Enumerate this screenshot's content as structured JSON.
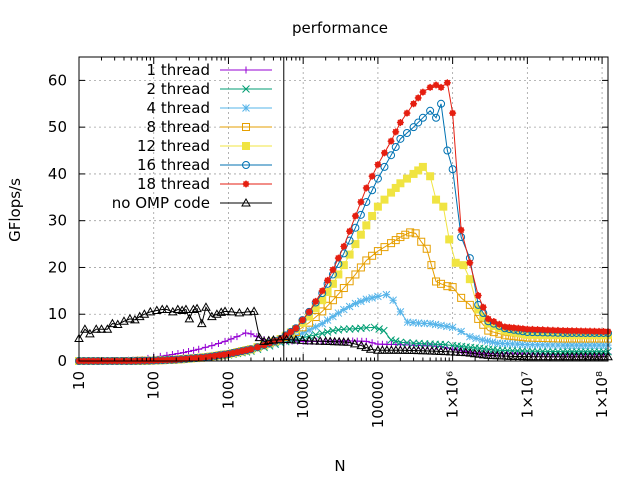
{
  "chart_data": {
    "type": "line",
    "title": "performance",
    "xlabel": "N",
    "ylabel": "GFlops/s",
    "xscale": "log",
    "xlim": [
      10,
      120000000
    ],
    "ylim": [
      0,
      65
    ],
    "grid": true,
    "legend_position": "top-left",
    "x_ticks": [
      {
        "value": 10,
        "label": "10"
      },
      {
        "value": 100,
        "label": "100"
      },
      {
        "value": 1000,
        "label": "1000"
      },
      {
        "value": 10000,
        "label": "10000"
      },
      {
        "value": 100000,
        "label": "100000"
      },
      {
        "value": 1000000,
        "label": "1×10⁶"
      },
      {
        "value": 10000000,
        "label": "1×10⁷"
      },
      {
        "value": 100000000,
        "label": "1×10⁸"
      }
    ],
    "y_ticks": [
      0,
      10,
      20,
      30,
      40,
      50,
      60
    ],
    "vertical_marker_x": 5500,
    "series": [
      {
        "name": "1 thread",
        "color": "#9400d3",
        "marker": "plus",
        "points": [
          [
            10,
            0
          ],
          [
            20,
            0
          ],
          [
            40,
            0.1
          ],
          [
            70,
            0.3
          ],
          [
            100,
            0.8
          ],
          [
            150,
            1.2
          ],
          [
            250,
            1.8
          ],
          [
            400,
            2.5
          ],
          [
            600,
            3.3
          ],
          [
            900,
            4.2
          ],
          [
            1300,
            5.2
          ],
          [
            1700,
            6
          ],
          [
            2000,
            5.8
          ],
          [
            2400,
            5.2
          ],
          [
            3000,
            4.6
          ],
          [
            4000,
            4.4
          ],
          [
            6000,
            4.3
          ],
          [
            10000,
            4.2
          ],
          [
            20000,
            4.2
          ],
          [
            40000,
            4.3
          ],
          [
            70000,
            4.2
          ],
          [
            100000,
            3.6
          ],
          [
            200000,
            3.5
          ],
          [
            400000,
            3.3
          ],
          [
            700000,
            3.1
          ],
          [
            1000000,
            2.5
          ],
          [
            2000000,
            1.7
          ],
          [
            4000000,
            1.6
          ],
          [
            10000000,
            1.5
          ],
          [
            30000000,
            1.4
          ],
          [
            120000000,
            1.5
          ]
        ]
      },
      {
        "name": "2 thread",
        "color": "#009e73",
        "marker": "cross",
        "points": [
          [
            10,
            0
          ],
          [
            50,
            0
          ],
          [
            100,
            0.1
          ],
          [
            200,
            0.3
          ],
          [
            500,
            0.7
          ],
          [
            1000,
            1.3
          ],
          [
            2000,
            2.1
          ],
          [
            3000,
            2.9
          ],
          [
            5000,
            3.9
          ],
          [
            8000,
            4.6
          ],
          [
            12000,
            5.3
          ],
          [
            18000,
            5.9
          ],
          [
            25000,
            6.5
          ],
          [
            35000,
            6.8
          ],
          [
            50000,
            6.9
          ],
          [
            70000,
            7.1
          ],
          [
            90000,
            7.2
          ],
          [
            120000,
            6.5
          ],
          [
            150000,
            4.5
          ],
          [
            200000,
            4
          ],
          [
            300000,
            3.8
          ],
          [
            500000,
            3.6
          ],
          [
            800000,
            3.5
          ],
          [
            1000000,
            3.3
          ],
          [
            2000000,
            2.8
          ],
          [
            4000000,
            2.3
          ],
          [
            10000000,
            2.1
          ],
          [
            30000000,
            2.0
          ],
          [
            120000000,
            2.0
          ]
        ]
      },
      {
        "name": "4 thread",
        "color": "#56b4e9",
        "marker": "star",
        "points": [
          [
            10,
            0
          ],
          [
            50,
            0
          ],
          [
            100,
            0.1
          ],
          [
            200,
            0.3
          ],
          [
            500,
            0.8
          ],
          [
            1000,
            1.5
          ],
          [
            2000,
            2.4
          ],
          [
            3000,
            3.2
          ],
          [
            5000,
            4.2
          ],
          [
            8000,
            5.3
          ],
          [
            12000,
            6.6
          ],
          [
            18000,
            8
          ],
          [
            25000,
            9.5
          ],
          [
            35000,
            11
          ],
          [
            50000,
            12.3
          ],
          [
            70000,
            13.2
          ],
          [
            100000,
            13.8
          ],
          [
            130000,
            14.2
          ],
          [
            160000,
            13
          ],
          [
            200000,
            10.5
          ],
          [
            250000,
            8.3
          ],
          [
            350000,
            8.1
          ],
          [
            500000,
            8
          ],
          [
            700000,
            7.6
          ],
          [
            1000000,
            7.2
          ],
          [
            1300000,
            6.3
          ],
          [
            1700000,
            5.2
          ],
          [
            2500000,
            4.5
          ],
          [
            4000000,
            3.8
          ],
          [
            10000000,
            3.5
          ],
          [
            30000000,
            3.4
          ],
          [
            120000000,
            3.4
          ]
        ]
      },
      {
        "name": "8 thread",
        "color": "#e69f00",
        "marker": "square-open",
        "points": [
          [
            10,
            0
          ],
          [
            50,
            0
          ],
          [
            100,
            0.1
          ],
          [
            200,
            0.3
          ],
          [
            500,
            0.8
          ],
          [
            1000,
            1.5
          ],
          [
            2000,
            2.5
          ],
          [
            3000,
            3.4
          ],
          [
            5000,
            4.6
          ],
          [
            8000,
            6.2
          ],
          [
            12000,
            8.2
          ],
          [
            18000,
            10.6
          ],
          [
            25000,
            13
          ],
          [
            35000,
            15.6
          ],
          [
            50000,
            18.5
          ],
          [
            70000,
            21.5
          ],
          [
            100000,
            23.5
          ],
          [
            150000,
            25.2
          ],
          [
            200000,
            26.5
          ],
          [
            270000,
            27.5
          ],
          [
            320000,
            27.3
          ],
          [
            380000,
            25.5
          ],
          [
            450000,
            24
          ],
          [
            520000,
            20.5
          ],
          [
            600000,
            17
          ],
          [
            700000,
            16.5
          ],
          [
            850000,
            16
          ],
          [
            1000000,
            15.8
          ],
          [
            1300000,
            13.5
          ],
          [
            1700000,
            12
          ],
          [
            2200000,
            9
          ],
          [
            3000000,
            6.5
          ],
          [
            5000000,
            5.5
          ],
          [
            10000000,
            5
          ],
          [
            30000000,
            4.8
          ],
          [
            120000000,
            4.8
          ]
        ]
      },
      {
        "name": "12 thread",
        "color": "#f0e442",
        "marker": "square-filled",
        "points": [
          [
            10,
            0
          ],
          [
            50,
            0
          ],
          [
            100,
            0.1
          ],
          [
            200,
            0.3
          ],
          [
            500,
            0.8
          ],
          [
            1000,
            1.5
          ],
          [
            2000,
            2.5
          ],
          [
            3000,
            3.4
          ],
          [
            5000,
            4.7
          ],
          [
            8000,
            6.8
          ],
          [
            12000,
            9.5
          ],
          [
            18000,
            13
          ],
          [
            25000,
            16.5
          ],
          [
            35000,
            20.5
          ],
          [
            50000,
            25
          ],
          [
            70000,
            29
          ],
          [
            100000,
            33
          ],
          [
            150000,
            36
          ],
          [
            200000,
            38
          ],
          [
            300000,
            40
          ],
          [
            400000,
            41.5
          ],
          [
            500000,
            39.5
          ],
          [
            600000,
            34.5
          ],
          [
            750000,
            33
          ],
          [
            900000,
            26
          ],
          [
            1100000,
            21
          ],
          [
            1400000,
            20.5
          ],
          [
            1700000,
            17.5
          ],
          [
            2200000,
            11
          ],
          [
            3000000,
            8
          ],
          [
            5000000,
            6.5
          ],
          [
            10000000,
            5.6
          ],
          [
            30000000,
            5.5
          ],
          [
            120000000,
            5.5
          ]
        ]
      },
      {
        "name": "16 thread",
        "color": "#0072b2",
        "marker": "circle-open",
        "points": [
          [
            10,
            0
          ],
          [
            50,
            0
          ],
          [
            100,
            0.1
          ],
          [
            200,
            0.3
          ],
          [
            500,
            0.8
          ],
          [
            1000,
            1.5
          ],
          [
            2000,
            2.5
          ],
          [
            3000,
            3.4
          ],
          [
            5000,
            4.7
          ],
          [
            8000,
            7
          ],
          [
            12000,
            10.5
          ],
          [
            18000,
            14.5
          ],
          [
            25000,
            18.5
          ],
          [
            35000,
            23
          ],
          [
            50000,
            28.5
          ],
          [
            70000,
            34
          ],
          [
            100000,
            39
          ],
          [
            150000,
            44
          ],
          [
            200000,
            47.5
          ],
          [
            300000,
            50
          ],
          [
            400000,
            52
          ],
          [
            500000,
            53.5
          ],
          [
            600000,
            52
          ],
          [
            700000,
            55
          ],
          [
            850000,
            45
          ],
          [
            1000000,
            41
          ],
          [
            1300000,
            26.5
          ],
          [
            1700000,
            22
          ],
          [
            2200000,
            12
          ],
          [
            3000000,
            8.5
          ],
          [
            5000000,
            7
          ],
          [
            10000000,
            6.2
          ],
          [
            30000000,
            6
          ],
          [
            120000000,
            6
          ]
        ]
      },
      {
        "name": "18 thread",
        "color": "#e51e10",
        "marker": "star-filled",
        "points": [
          [
            10,
            0
          ],
          [
            50,
            0
          ],
          [
            100,
            0.1
          ],
          [
            200,
            0.3
          ],
          [
            500,
            0.8
          ],
          [
            1000,
            1.5
          ],
          [
            2000,
            2.5
          ],
          [
            3000,
            3.4
          ],
          [
            5000,
            4.7
          ],
          [
            8000,
            7
          ],
          [
            12000,
            10.5
          ],
          [
            18000,
            15
          ],
          [
            25000,
            19.5
          ],
          [
            35000,
            24.5
          ],
          [
            50000,
            31
          ],
          [
            70000,
            37
          ],
          [
            100000,
            42
          ],
          [
            150000,
            47
          ],
          [
            200000,
            51
          ],
          [
            300000,
            55
          ],
          [
            400000,
            57.5
          ],
          [
            500000,
            58.5
          ],
          [
            600000,
            59
          ],
          [
            700000,
            58.5
          ],
          [
            850000,
            59.5
          ],
          [
            1000000,
            53
          ],
          [
            1300000,
            28
          ],
          [
            1700000,
            21
          ],
          [
            2200000,
            14
          ],
          [
            3000000,
            9
          ],
          [
            5000000,
            7.3
          ],
          [
            10000000,
            6.8
          ],
          [
            30000000,
            6.5
          ],
          [
            120000000,
            6.3
          ]
        ]
      },
      {
        "name": "no OMP code",
        "color": "#000000",
        "marker": "triangle-open",
        "points": [
          [
            10,
            4.8
          ],
          [
            12,
            6.8
          ],
          [
            14,
            5.8
          ],
          [
            17,
            6.8
          ],
          [
            20,
            6.8
          ],
          [
            24,
            6.8
          ],
          [
            28,
            8
          ],
          [
            33,
            7.8
          ],
          [
            40,
            8.5
          ],
          [
            48,
            9
          ],
          [
            56,
            8.8
          ],
          [
            65,
            9.5
          ],
          [
            75,
            10
          ],
          [
            90,
            10.5
          ],
          [
            110,
            10.8
          ],
          [
            130,
            11
          ],
          [
            150,
            11
          ],
          [
            180,
            10.5
          ],
          [
            210,
            11
          ],
          [
            240,
            10.8
          ],
          [
            270,
            11
          ],
          [
            300,
            9
          ],
          [
            340,
            11
          ],
          [
            380,
            11.2
          ],
          [
            440,
            8
          ],
          [
            500,
            11.5
          ],
          [
            600,
            9.5
          ],
          [
            700,
            10
          ],
          [
            800,
            10.4
          ],
          [
            900,
            10.6
          ],
          [
            1100,
            10.5
          ],
          [
            1400,
            10.3
          ],
          [
            1800,
            10.5
          ],
          [
            2200,
            10.6
          ],
          [
            2600,
            5
          ],
          [
            3000,
            4.2
          ],
          [
            4000,
            4.5
          ],
          [
            6000,
            4.6
          ],
          [
            8000,
            4.5
          ],
          [
            12000,
            4.3
          ],
          [
            20000,
            4.2
          ],
          [
            40000,
            4
          ],
          [
            60000,
            3.3
          ],
          [
            80000,
            2.5
          ],
          [
            100000,
            2.3
          ],
          [
            200000,
            2.3
          ],
          [
            400000,
            2.2
          ],
          [
            800000,
            2.0
          ],
          [
            1500000,
            1.8
          ],
          [
            3000000,
            1.2
          ],
          [
            6000000,
            1.0
          ],
          [
            12000000,
            0.9
          ],
          [
            30000000,
            0.9
          ],
          [
            120000000,
            0.9
          ]
        ]
      }
    ]
  }
}
